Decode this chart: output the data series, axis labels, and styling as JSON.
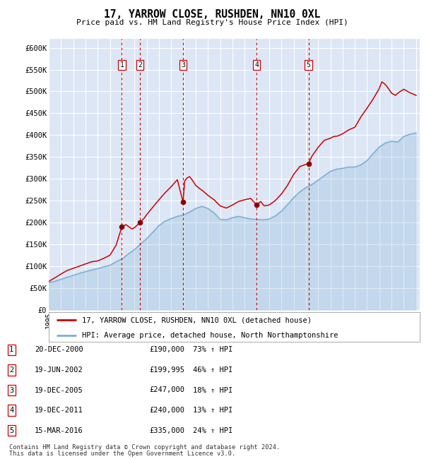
{
  "title": "17, YARROW CLOSE, RUSHDEN, NN10 0XL",
  "subtitle": "Price paid vs. HM Land Registry's House Price Index (HPI)",
  "ylim": [
    0,
    620000
  ],
  "yticks": [
    0,
    50000,
    100000,
    150000,
    200000,
    250000,
    300000,
    350000,
    400000,
    450000,
    500000,
    550000,
    600000
  ],
  "ytick_labels": [
    "£0",
    "£50K",
    "£100K",
    "£150K",
    "£200K",
    "£250K",
    "£300K",
    "£350K",
    "£400K",
    "£450K",
    "£500K",
    "£550K",
    "£600K"
  ],
  "plot_bg_color": "#dce6f5",
  "grid_color": "#ffffff",
  "red_line_color": "#cc0000",
  "blue_line_color": "#7bafd4",
  "sale_marker_color": "#880000",
  "sale_vline_color": "#cc0000",
  "transactions": [
    {
      "label": "1",
      "date": "2000-12-20",
      "price": 190000,
      "x": 2000.97
    },
    {
      "label": "2",
      "date": "2002-06-19",
      "price": 199995,
      "x": 2002.46
    },
    {
      "label": "3",
      "date": "2005-12-19",
      "price": 247000,
      "x": 2005.97
    },
    {
      "label": "4",
      "date": "2011-12-19",
      "price": 240000,
      "x": 2011.97
    },
    {
      "label": "5",
      "date": "2016-03-15",
      "price": 335000,
      "x": 2016.21
    }
  ],
  "footer_line1": "Contains HM Land Registry data © Crown copyright and database right 2024.",
  "footer_line2": "This data is licensed under the Open Government Licence v3.0.",
  "legend_line1": "17, YARROW CLOSE, RUSHDEN, NN10 0XL (detached house)",
  "legend_line2": "HPI: Average price, detached house, North Northamptonshire",
  "table_rows": [
    [
      "1",
      "20-DEC-2000",
      "£190,000",
      "73% ↑ HPI"
    ],
    [
      "2",
      "19-JUN-2002",
      "£199,995",
      "46% ↑ HPI"
    ],
    [
      "3",
      "19-DEC-2005",
      "£247,000",
      "18% ↑ HPI"
    ],
    [
      "4",
      "19-DEC-2011",
      "£240,000",
      "13% ↑ HPI"
    ],
    [
      "5",
      "15-MAR-2016",
      "£335,000",
      "24% ↑ HPI"
    ]
  ],
  "red_line": [
    [
      1995.0,
      65000
    ],
    [
      1995.3,
      70000
    ],
    [
      1995.6,
      75000
    ],
    [
      1996.0,
      82000
    ],
    [
      1996.5,
      90000
    ],
    [
      1997.0,
      95000
    ],
    [
      1997.5,
      100000
    ],
    [
      1998.0,
      105000
    ],
    [
      1998.5,
      110000
    ],
    [
      1999.0,
      112000
    ],
    [
      1999.5,
      118000
    ],
    [
      2000.0,
      125000
    ],
    [
      2000.5,
      148000
    ],
    [
      2000.97,
      190000
    ],
    [
      2001.3,
      195000
    ],
    [
      2001.8,
      185000
    ],
    [
      2002.0,
      188000
    ],
    [
      2002.46,
      199995
    ],
    [
      2002.8,
      210000
    ],
    [
      2003.0,
      218000
    ],
    [
      2003.5,
      235000
    ],
    [
      2004.0,
      252000
    ],
    [
      2004.5,
      268000
    ],
    [
      2005.0,
      282000
    ],
    [
      2005.5,
      298000
    ],
    [
      2005.97,
      247000
    ],
    [
      2006.1,
      295000
    ],
    [
      2006.3,
      302000
    ],
    [
      2006.5,
      305000
    ],
    [
      2006.7,
      298000
    ],
    [
      2007.0,
      285000
    ],
    [
      2007.3,
      278000
    ],
    [
      2007.6,
      272000
    ],
    [
      2008.0,
      262000
    ],
    [
      2008.5,
      252000
    ],
    [
      2009.0,
      238000
    ],
    [
      2009.5,
      233000
    ],
    [
      2010.0,
      240000
    ],
    [
      2010.5,
      248000
    ],
    [
      2011.0,
      252000
    ],
    [
      2011.5,
      255000
    ],
    [
      2011.97,
      240000
    ],
    [
      2012.3,
      248000
    ],
    [
      2012.6,
      238000
    ],
    [
      2013.0,
      240000
    ],
    [
      2013.5,
      250000
    ],
    [
      2014.0,
      265000
    ],
    [
      2014.5,
      285000
    ],
    [
      2015.0,
      310000
    ],
    [
      2015.5,
      328000
    ],
    [
      2016.21,
      335000
    ],
    [
      2016.5,
      352000
    ],
    [
      2017.0,
      372000
    ],
    [
      2017.5,
      388000
    ],
    [
      2018.0,
      393000
    ],
    [
      2018.3,
      397000
    ],
    [
      2018.6,
      398000
    ],
    [
      2019.0,
      403000
    ],
    [
      2019.5,
      412000
    ],
    [
      2020.0,
      418000
    ],
    [
      2020.5,
      442000
    ],
    [
      2021.0,
      462000
    ],
    [
      2021.5,
      483000
    ],
    [
      2022.0,
      507000
    ],
    [
      2022.2,
      522000
    ],
    [
      2022.4,
      518000
    ],
    [
      2022.6,
      512000
    ],
    [
      2023.0,
      496000
    ],
    [
      2023.3,
      491000
    ],
    [
      2023.6,
      498000
    ],
    [
      2024.0,
      505000
    ],
    [
      2024.5,
      497000
    ],
    [
      2025.0,
      491000
    ]
  ],
  "blue_line": [
    [
      1995.0,
      62000
    ],
    [
      1995.5,
      65500
    ],
    [
      1996.0,
      70000
    ],
    [
      1996.5,
      74500
    ],
    [
      1997.0,
      79000
    ],
    [
      1997.5,
      83500
    ],
    [
      1998.0,
      87500
    ],
    [
      1998.5,
      91500
    ],
    [
      1999.0,
      94500
    ],
    [
      1999.5,
      98500
    ],
    [
      2000.0,
      102000
    ],
    [
      2000.5,
      110000
    ],
    [
      2001.0,
      117000
    ],
    [
      2001.5,
      128000
    ],
    [
      2002.0,
      138000
    ],
    [
      2002.5,
      151000
    ],
    [
      2003.0,
      163000
    ],
    [
      2003.5,
      178000
    ],
    [
      2004.0,
      193000
    ],
    [
      2004.5,
      203000
    ],
    [
      2005.0,
      209000
    ],
    [
      2005.5,
      214000
    ],
    [
      2006.0,
      217000
    ],
    [
      2006.5,
      224000
    ],
    [
      2007.0,
      232000
    ],
    [
      2007.5,
      237000
    ],
    [
      2008.0,
      232000
    ],
    [
      2008.5,
      222000
    ],
    [
      2009.0,
      207000
    ],
    [
      2009.5,
      206000
    ],
    [
      2010.0,
      211000
    ],
    [
      2010.5,
      214000
    ],
    [
      2011.0,
      211000
    ],
    [
      2011.5,
      208000
    ],
    [
      2012.0,
      207000
    ],
    [
      2012.5,
      206000
    ],
    [
      2013.0,
      208000
    ],
    [
      2013.5,
      215000
    ],
    [
      2014.0,
      226000
    ],
    [
      2014.5,
      241000
    ],
    [
      2015.0,
      257000
    ],
    [
      2015.5,
      270000
    ],
    [
      2016.0,
      280000
    ],
    [
      2016.5,
      287000
    ],
    [
      2017.0,
      297000
    ],
    [
      2017.5,
      307000
    ],
    [
      2018.0,
      317000
    ],
    [
      2018.5,
      322000
    ],
    [
      2019.0,
      324000
    ],
    [
      2019.5,
      327000
    ],
    [
      2020.0,
      327000
    ],
    [
      2020.5,
      332000
    ],
    [
      2021.0,
      342000
    ],
    [
      2021.5,
      358000
    ],
    [
      2022.0,
      373000
    ],
    [
      2022.5,
      382000
    ],
    [
      2023.0,
      386000
    ],
    [
      2023.5,
      384000
    ],
    [
      2024.0,
      397000
    ],
    [
      2024.5,
      402000
    ],
    [
      2025.0,
      405000
    ]
  ]
}
